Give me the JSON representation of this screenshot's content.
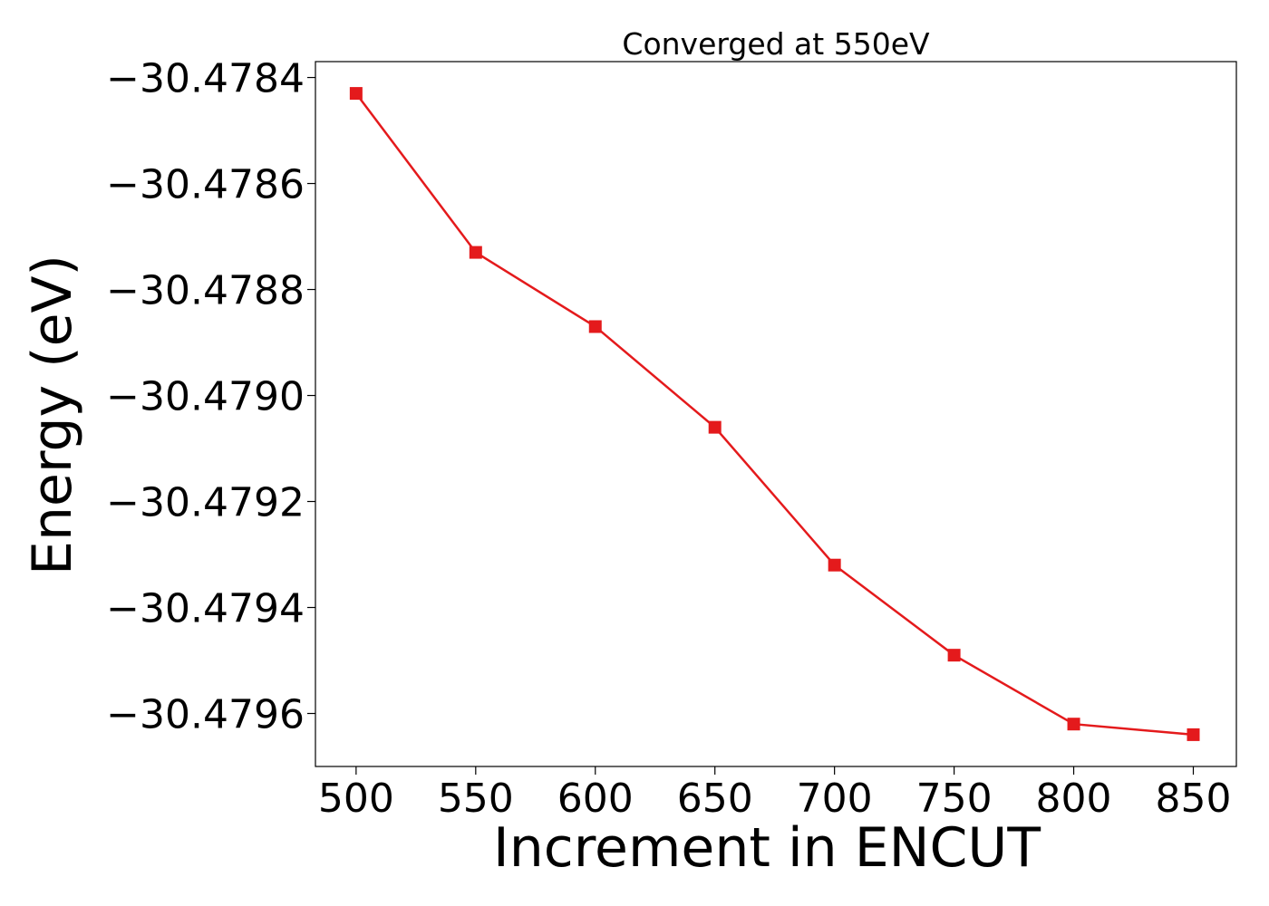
{
  "chart_data": {
    "type": "line",
    "title": "Converged at 550eV",
    "xlabel": "Increment in ENCUT",
    "ylabel": "Energy (eV)",
    "x": [
      500,
      550,
      600,
      650,
      700,
      750,
      800,
      850
    ],
    "series": [
      {
        "values": [
          -30.47843,
          -30.47873,
          -30.47887,
          -30.47906,
          -30.47932,
          -30.47949,
          -30.47962,
          -30.47964
        ],
        "color": "#e41a1c",
        "marker": "square"
      }
    ],
    "xlim": [
      483,
      868
    ],
    "ylim": [
      -30.4797,
      -30.47837
    ],
    "xticks": [
      500,
      550,
      600,
      650,
      700,
      750,
      800,
      850
    ],
    "xtick_labels": [
      "500",
      "550",
      "600",
      "650",
      "700",
      "750",
      "800",
      "850"
    ],
    "yticks": [
      -30.4784,
      -30.4786,
      -30.4788,
      -30.479,
      -30.4792,
      -30.4794,
      -30.4796
    ],
    "ytick_labels": [
      "−30.4784",
      "−30.4786",
      "−30.4788",
      "−30.4790",
      "−30.4792",
      "−30.4794",
      "−30.4796"
    ],
    "grid": false,
    "legend": false
  }
}
